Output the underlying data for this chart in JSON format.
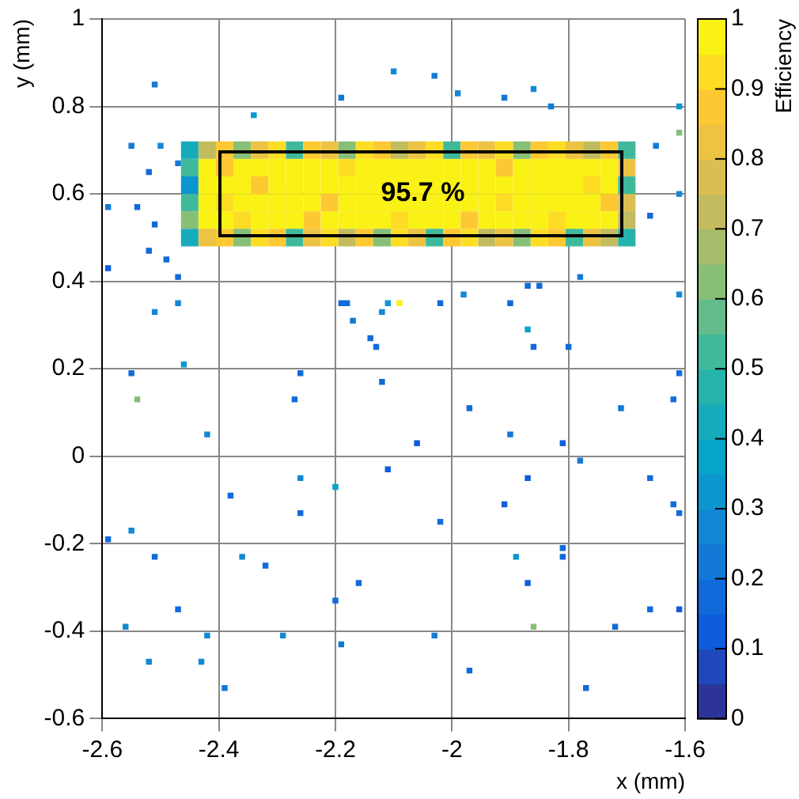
{
  "chart_data": {
    "type": "scatter",
    "xlabel": "x (mm)",
    "ylabel": "y (mm)",
    "clabel": "Efficiency",
    "clim": [
      0,
      1
    ],
    "cticks": [
      0,
      0.1,
      0.2,
      0.3,
      0.4,
      0.5,
      0.6,
      0.7,
      0.8,
      0.9,
      1
    ],
    "xlim": [
      -2.6,
      -1.6
    ],
    "xticks": [
      -2.6,
      -2.4,
      -2.2,
      -2,
      -1.8,
      -1.6
    ],
    "ylim": [
      -0.6,
      1
    ],
    "yticks": [
      -0.6,
      -0.4,
      -0.2,
      0,
      0.2,
      0.4,
      0.6,
      0.8,
      1
    ],
    "grid": true,
    "marker": "square",
    "annotations": [
      {
        "text": "95.7 %",
        "x": -2.05,
        "y": 0.6
      }
    ],
    "series": [
      {
        "x": [
          -2.45,
          -2.42,
          -2.39,
          -2.36,
          -2.33,
          -2.3,
          -2.27,
          -2.24,
          -2.21,
          -2.18,
          -2.15,
          -2.12,
          -2.09,
          -2.06,
          -2.03,
          -2,
          -1.97,
          -1.94,
          -1.91,
          -1.88,
          -1.85,
          -1.82,
          -1.79,
          -1.76,
          -1.73,
          -1.7
        ],
        "values": [
          0.5,
          0.5,
          0.5,
          0.5,
          0.5,
          0.5,
          0.5,
          0.5,
          0.5,
          0.5,
          0.5,
          0.5,
          0.5,
          0.5,
          0.5,
          0.5,
          0.5,
          0.5,
          0.5,
          0.5,
          0.5,
          0.5,
          0.5,
          0.5,
          0.5,
          0.5
        ],
        "cvalues": [
          0.4,
          0.8,
          0.85,
          0.6,
          0.9,
          0.85,
          0.5,
          0.8,
          0.9,
          0.7,
          0.85,
          0.6,
          0.9,
          0.8,
          0.5,
          0.85,
          0.9,
          0.7,
          0.8,
          0.6,
          0.9,
          0.85,
          0.5,
          0.8,
          0.7,
          0.45
        ],
        "colors": [
          "#16abbb",
          "#ecc342",
          "#fec832",
          "#87bf77",
          "#fcdd24",
          "#fec832",
          "#40b99b",
          "#ecc342",
          "#fcdd24",
          "#c2bc5f",
          "#fec832",
          "#87bf77",
          "#fcdd24",
          "#ecc342",
          "#40b99b",
          "#fec832",
          "#fcdd24",
          "#c2bc5f",
          "#ecc342",
          "#87bf77",
          "#fcdd24",
          "#fec832",
          "#40b99b",
          "#ecc342",
          "#c2bc5f",
          "#26b3ab"
        ]
      },
      {
        "x": [
          -2.45,
          -2.42,
          -2.39,
          -2.36,
          -2.33,
          -2.3,
          -2.27,
          -2.24,
          -2.21,
          -2.18,
          -2.15,
          -2.12,
          -2.09,
          -2.06,
          -2.03,
          -2,
          -1.97,
          -1.94,
          -1.91,
          -1.88,
          -1.85,
          -1.82,
          -1.79,
          -1.76,
          -1.73,
          -1.7
        ],
        "values": [
          0.54,
          0.54,
          0.54,
          0.54,
          0.54,
          0.54,
          0.54,
          0.54,
          0.54,
          0.54,
          0.54,
          0.54,
          0.54,
          0.54,
          0.54,
          0.54,
          0.54,
          0.54,
          0.54,
          0.54,
          0.54,
          0.54,
          0.54,
          0.54,
          0.54,
          0.54
        ],
        "cvalues": [
          0.6,
          0.95,
          0.95,
          0.9,
          0.95,
          0.95,
          0.95,
          0.85,
          0.95,
          0.95,
          0.95,
          0.95,
          0.9,
          0.95,
          0.95,
          0.95,
          0.85,
          0.95,
          0.95,
          0.95,
          0.95,
          0.9,
          0.95,
          0.95,
          0.95,
          0.7
        ],
        "colors": [
          "#87bf77",
          "#faf115",
          "#faf115",
          "#fcdd24",
          "#faf115",
          "#faf115",
          "#faf115",
          "#fec832",
          "#faf115",
          "#faf115",
          "#faf115",
          "#faf115",
          "#fcdd24",
          "#faf115",
          "#faf115",
          "#faf115",
          "#fec832",
          "#faf115",
          "#faf115",
          "#faf115",
          "#faf115",
          "#fcdd24",
          "#faf115",
          "#faf115",
          "#faf115",
          "#c2bc5f"
        ]
      },
      {
        "x": [
          -2.45,
          -2.42,
          -2.39,
          -2.36,
          -2.33,
          -2.3,
          -2.27,
          -2.24,
          -2.21,
          -2.18,
          -2.15,
          -2.12,
          -2.09,
          -2.06,
          -2.03,
          -2,
          -1.97,
          -1.94,
          -1.91,
          -1.88,
          -1.85,
          -1.82,
          -1.79,
          -1.76,
          -1.73,
          -1.7
        ],
        "values": [
          0.58,
          0.58,
          0.58,
          0.58,
          0.58,
          0.58,
          0.58,
          0.58,
          0.58,
          0.58,
          0.58,
          0.58,
          0.58,
          0.58,
          0.58,
          0.58,
          0.58,
          0.58,
          0.58,
          0.58,
          0.58,
          0.58,
          0.58,
          0.58,
          0.58,
          0.58
        ],
        "cvalues": [
          0.5,
          0.95,
          0.9,
          0.95,
          0.95,
          0.95,
          0.95,
          0.95,
          0.85,
          0.95,
          0.95,
          0.95,
          0.95,
          0.95,
          0.95,
          0.95,
          0.95,
          0.95,
          0.9,
          0.95,
          0.95,
          0.95,
          0.95,
          0.95,
          0.85,
          0.75
        ],
        "colors": [
          "#40b99b",
          "#faf115",
          "#fcdd24",
          "#faf115",
          "#faf115",
          "#faf115",
          "#faf115",
          "#faf115",
          "#fec832",
          "#faf115",
          "#faf115",
          "#faf115",
          "#faf115",
          "#faf115",
          "#faf115",
          "#faf115",
          "#faf115",
          "#faf115",
          "#fcdd24",
          "#faf115",
          "#faf115",
          "#faf115",
          "#faf115",
          "#faf115",
          "#fec832",
          "#dabe51"
        ]
      },
      {
        "x": [
          -2.45,
          -2.42,
          -2.39,
          -2.36,
          -2.33,
          -2.3,
          -2.27,
          -2.24,
          -2.21,
          -2.18,
          -2.15,
          -2.12,
          -2.09,
          -2.06,
          -2.03,
          -2,
          -1.97,
          -1.94,
          -1.91,
          -1.88,
          -1.85,
          -1.82,
          -1.79,
          -1.76,
          -1.73,
          -1.7
        ],
        "values": [
          0.62,
          0.62,
          0.62,
          0.62,
          0.62,
          0.62,
          0.62,
          0.62,
          0.62,
          0.62,
          0.62,
          0.62,
          0.62,
          0.62,
          0.62,
          0.62,
          0.62,
          0.62,
          0.62,
          0.62,
          0.62,
          0.62,
          0.62,
          0.62,
          0.62,
          0.62
        ],
        "cvalues": [
          0.3,
          0.95,
          0.95,
          0.95,
          0.85,
          0.95,
          0.95,
          0.95,
          0.95,
          0.95,
          0.95,
          0.95,
          0.95,
          0.95,
          0.95,
          0.95,
          0.95,
          0.95,
          0.95,
          0.95,
          0.95,
          0.95,
          0.95,
          0.9,
          0.95,
          0.5
        ],
        "colors": [
          "#0c96cf",
          "#faf115",
          "#faf115",
          "#faf115",
          "#fec832",
          "#faf115",
          "#faf115",
          "#faf115",
          "#faf115",
          "#faf115",
          "#faf115",
          "#faf115",
          "#faf115",
          "#faf115",
          "#faf115",
          "#faf115",
          "#faf115",
          "#faf115",
          "#faf115",
          "#faf115",
          "#faf115",
          "#faf115",
          "#faf115",
          "#fcdd24",
          "#faf115",
          "#40b99b"
        ]
      },
      {
        "x": [
          -2.45,
          -2.42,
          -2.39,
          -2.36,
          -2.33,
          -2.3,
          -2.27,
          -2.24,
          -2.21,
          -2.18,
          -2.15,
          -2.12,
          -2.09,
          -2.06,
          -2.03,
          -2,
          -1.97,
          -1.94,
          -1.91,
          -1.88,
          -1.85,
          -1.82,
          -1.79,
          -1.76,
          -1.73,
          -1.7
        ],
        "values": [
          0.66,
          0.66,
          0.66,
          0.66,
          0.66,
          0.66,
          0.66,
          0.66,
          0.66,
          0.66,
          0.66,
          0.66,
          0.66,
          0.66,
          0.66,
          0.66,
          0.66,
          0.66,
          0.66,
          0.66,
          0.66,
          0.66,
          0.66,
          0.66,
          0.66,
          0.66
        ],
        "cvalues": [
          0.5,
          0.95,
          0.85,
          0.95,
          0.95,
          0.95,
          0.95,
          0.95,
          0.95,
          0.9,
          0.95,
          0.95,
          0.95,
          0.95,
          0.95,
          0.95,
          0.95,
          0.95,
          0.85,
          0.95,
          0.95,
          0.95,
          0.95,
          0.95,
          0.95,
          0.8
        ],
        "colors": [
          "#40b99b",
          "#faf115",
          "#fec832",
          "#faf115",
          "#faf115",
          "#faf115",
          "#faf115",
          "#faf115",
          "#faf115",
          "#fcdd24",
          "#faf115",
          "#faf115",
          "#faf115",
          "#faf115",
          "#faf115",
          "#faf115",
          "#faf115",
          "#faf115",
          "#fec832",
          "#faf115",
          "#faf115",
          "#faf115",
          "#faf115",
          "#faf115",
          "#faf115",
          "#ecc342"
        ]
      },
      {
        "x": [
          -2.45,
          -2.42,
          -2.39,
          -2.36,
          -2.33,
          -2.3,
          -2.27,
          -2.24,
          -2.21,
          -2.18,
          -2.15,
          -2.12,
          -2.09,
          -2.06,
          -2.03,
          -2,
          -1.97,
          -1.94,
          -1.91,
          -1.88,
          -1.85,
          -1.82,
          -1.79,
          -1.76,
          -1.73,
          -1.7
        ],
        "values": [
          0.7,
          0.7,
          0.7,
          0.7,
          0.7,
          0.7,
          0.7,
          0.7,
          0.7,
          0.7,
          0.7,
          0.7,
          0.7,
          0.7,
          0.7,
          0.7,
          0.7,
          0.7,
          0.7,
          0.7,
          0.7,
          0.7,
          0.7,
          0.7,
          0.7,
          0.7
        ],
        "cvalues": [
          0.4,
          0.7,
          0.85,
          0.6,
          0.8,
          0.9,
          0.5,
          0.85,
          0.8,
          0.6,
          0.9,
          0.85,
          0.7,
          0.8,
          0.9,
          0.5,
          0.85,
          0.8,
          0.9,
          0.6,
          0.85,
          0.9,
          0.8,
          0.7,
          0.85,
          0.5
        ],
        "colors": [
          "#16abbb",
          "#c2bc5f",
          "#fec832",
          "#87bf77",
          "#ecc342",
          "#fcdd24",
          "#40b99b",
          "#fec832",
          "#ecc342",
          "#87bf77",
          "#fcdd24",
          "#fec832",
          "#c2bc5f",
          "#ecc342",
          "#fcdd24",
          "#40b99b",
          "#fec832",
          "#ecc342",
          "#fcdd24",
          "#87bf77",
          "#fec832",
          "#fcdd24",
          "#ecc342",
          "#c2bc5f",
          "#fec832",
          "#40b99b"
        ]
      },
      {
        "x": [
          -2.51,
          -2.1,
          -2.03,
          -1.99,
          -2.19,
          -1.91,
          -1.86,
          -1.83,
          -2.34,
          -2.55,
          -2.5,
          -2.52,
          -2.47,
          -2.59,
          -2.54,
          -2.51,
          -2.52,
          -2.49,
          -2.59,
          -2.47,
          -1.65,
          -1.61,
          -1.61,
          -1.66,
          -1.61,
          -2.51,
          -2.47,
          -2.46,
          -2.55,
          -2.54,
          -2.42,
          -2.26,
          -2.27,
          -2.19,
          -2.18,
          -2.17,
          -2.14,
          -2.13,
          -2.12,
          -2.11,
          -2.09,
          -2.12,
          -2.06,
          -2.02,
          -1.98,
          -1.97,
          -1.9,
          -1.9,
          -1.87,
          -1.85,
          -1.87,
          -1.86,
          -1.81,
          -1.8,
          -1.78,
          -1.78,
          -1.71,
          -1.62,
          -1.61,
          -1.61,
          -2.59,
          -2.55,
          -2.51,
          -2.47,
          -2.56,
          -2.52,
          -2.42,
          -2.43,
          -2.39,
          -2.38,
          -2.36,
          -2.32,
          -2.29,
          -2.26,
          -2.26,
          -2.2,
          -2.2,
          -2.19,
          -2.16,
          -2.11,
          -2.02,
          -2.03,
          -1.97,
          -1.91,
          -1.89,
          -1.87,
          -1.87,
          -1.86,
          -1.81,
          -1.81,
          -1.77,
          -1.72,
          -1.66,
          -1.66,
          -1.62,
          -1.61,
          -1.61
        ],
        "values": [
          0.85,
          0.88,
          0.87,
          0.83,
          0.82,
          0.82,
          0.84,
          0.8,
          0.78,
          0.71,
          0.71,
          0.65,
          0.67,
          0.57,
          0.57,
          0.53,
          0.47,
          0.45,
          0.43,
          0.41,
          0.71,
          0.8,
          0.74,
          0.55,
          0.6,
          0.33,
          0.35,
          0.21,
          0.19,
          0.13,
          0.05,
          0.19,
          0.13,
          0.35,
          0.35,
          0.31,
          0.27,
          0.25,
          0.33,
          0.35,
          0.35,
          0.17,
          0.03,
          0.35,
          0.37,
          0.11,
          0.35,
          0.05,
          0.39,
          0.39,
          0.29,
          0.25,
          0.03,
          0.25,
          0.41,
          -0.01,
          0.11,
          0.13,
          0.19,
          0.37,
          -0.19,
          -0.17,
          -0.23,
          -0.35,
          -0.39,
          -0.47,
          -0.41,
          -0.47,
          -0.53,
          -0.09,
          -0.23,
          -0.25,
          -0.41,
          -0.05,
          -0.13,
          -0.07,
          -0.33,
          -0.43,
          -0.29,
          -0.03,
          -0.15,
          -0.41,
          -0.49,
          -0.11,
          -0.23,
          -0.05,
          -0.29,
          -0.39,
          -0.21,
          -0.23,
          -0.53,
          -0.39,
          -0.05,
          -0.35,
          -0.11,
          -0.35,
          -0.13
        ],
        "cvalues": [
          0.2,
          0.25,
          0.2,
          0.25,
          0.2,
          0.2,
          0.25,
          0.2,
          0.3,
          0.2,
          0.25,
          0.15,
          0.2,
          0.2,
          0.15,
          0.15,
          0.15,
          0.15,
          0.1,
          0.15,
          0.2,
          0.3,
          0.6,
          0.15,
          0.25,
          0.25,
          0.25,
          0.3,
          0.15,
          0.6,
          0.25,
          0.15,
          0.15,
          0.15,
          0.15,
          0.2,
          0.15,
          0.15,
          0.25,
          0.3,
          0.95,
          0.15,
          0.1,
          0.15,
          0.25,
          0.15,
          0.15,
          0.2,
          0.15,
          0.15,
          0.35,
          0.15,
          0.1,
          0.15,
          0.2,
          0.2,
          0.2,
          0.15,
          0.15,
          0.25,
          0.15,
          0.25,
          0.15,
          0.15,
          0.25,
          0.25,
          0.25,
          0.25,
          0.2,
          0.15,
          0.25,
          0.15,
          0.25,
          0.25,
          0.15,
          0.35,
          0.15,
          0.2,
          0.15,
          0.1,
          0.15,
          0.2,
          0.15,
          0.1,
          0.3,
          0.1,
          0.1,
          0.6,
          0.15,
          0.15,
          0.15,
          0.15,
          0.15,
          0.15,
          0.15,
          0.1,
          0.15
        ],
        "colors": [
          "#1379d7",
          "#1188d3",
          "#1379d7",
          "#1188d3",
          "#1379d7",
          "#1379d7",
          "#1188d3",
          "#1379d7",
          "#0c96cf",
          "#1379d7",
          "#1188d3",
          "#116ada",
          "#1379d7",
          "#1379d7",
          "#116ada",
          "#116ada",
          "#116ada",
          "#116ada",
          "#0f5cdd",
          "#116ada",
          "#1379d7",
          "#0c96cf",
          "#87bf77",
          "#116ada",
          "#1188d3",
          "#1188d3",
          "#1188d3",
          "#0c96cf",
          "#116ada",
          "#87bf77",
          "#1188d3",
          "#116ada",
          "#116ada",
          "#116ada",
          "#116ada",
          "#1379d7",
          "#116ada",
          "#116ada",
          "#1188d3",
          "#0c96cf",
          "#faf115",
          "#116ada",
          "#0f5cdd",
          "#116ada",
          "#1188d3",
          "#116ada",
          "#116ada",
          "#1379d7",
          "#116ada",
          "#116ada",
          "#06a4ca",
          "#116ada",
          "#0f5cdd",
          "#116ada",
          "#1379d7",
          "#1379d7",
          "#1379d7",
          "#116ada",
          "#116ada",
          "#1188d3",
          "#116ada",
          "#1188d3",
          "#116ada",
          "#116ada",
          "#1188d3",
          "#1188d3",
          "#1188d3",
          "#1188d3",
          "#1379d7",
          "#116ada",
          "#1188d3",
          "#116ada",
          "#1188d3",
          "#1188d3",
          "#116ada",
          "#06a4ca",
          "#116ada",
          "#1379d7",
          "#116ada",
          "#0f5cdd",
          "#116ada",
          "#1379d7",
          "#116ada",
          "#0f5cdd",
          "#0c96cf",
          "#0f5cdd",
          "#0f5cdd",
          "#87bf77",
          "#116ada",
          "#116ada",
          "#116ada",
          "#116ada",
          "#116ada",
          "#116ada",
          "#116ada",
          "#0f5cdd",
          "#116ada"
        ]
      }
    ]
  }
}
